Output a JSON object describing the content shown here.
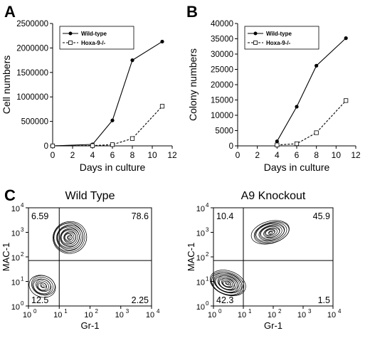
{
  "panels": [
    "A",
    "B",
    "C"
  ],
  "chart_data": [
    {
      "type": "line",
      "panel": "A",
      "ylabel": "Cell numbers",
      "xlabel": "Days in culture",
      "xlim": [
        0,
        12
      ],
      "ylim": [
        0,
        2500000
      ],
      "xticks": [
        0,
        2,
        4,
        6,
        8,
        10,
        12
      ],
      "yticks": [
        0,
        500000,
        1000000,
        1500000,
        2000000,
        2500000
      ],
      "ytick_labels": [
        "0",
        "500000",
        "1000000",
        "1500000",
        "2000000",
        "2500000"
      ],
      "legend_position": "top-right",
      "series": [
        {
          "name": "Wild-type",
          "x": [
            0,
            4,
            6,
            8,
            11
          ],
          "y": [
            0,
            30000,
            520000,
            1750000,
            2130000
          ]
        },
        {
          "name": "Hoxa-9-/-",
          "x": [
            0,
            4,
            6,
            8,
            11
          ],
          "y": [
            0,
            5000,
            25000,
            150000,
            810000
          ]
        }
      ]
    },
    {
      "type": "line",
      "panel": "B",
      "ylabel": "Colony numbers",
      "xlabel": "Days in culture",
      "xlim": [
        0,
        12
      ],
      "ylim": [
        0,
        40000
      ],
      "xticks": [
        0,
        2,
        4,
        6,
        8,
        10,
        12
      ],
      "yticks": [
        0,
        5000,
        10000,
        15000,
        20000,
        25000,
        30000,
        35000,
        40000
      ],
      "ytick_labels": [
        "0",
        "5000",
        "10000",
        "15000",
        "20000",
        "25000",
        "30000",
        "35000",
        "40000"
      ],
      "legend_position": "top-right",
      "series": [
        {
          "name": "Wild-type",
          "x": [
            4,
            6,
            8,
            11
          ],
          "y": [
            1500,
            12800,
            26200,
            35200
          ]
        },
        {
          "name": "Hoxa-9-/-",
          "x": [
            4,
            6,
            8,
            11
          ],
          "y": [
            300,
            700,
            4300,
            14800
          ]
        }
      ]
    },
    {
      "type": "contour",
      "panel": "C",
      "title": "Wild Type",
      "xlabel": "Gr-1",
      "ylabel": "MAC-1",
      "scale": "log",
      "xtick_labels": [
        "10",
        "10",
        "10",
        "10",
        "10"
      ],
      "xtick_exps": [
        "0",
        "1",
        "2",
        "3",
        "4"
      ],
      "ytick_labels": [
        "10",
        "10",
        "10",
        "10",
        "10"
      ],
      "ytick_exps": [
        "0",
        "1",
        "2",
        "3",
        "4"
      ],
      "gate_x": 1,
      "gate_y": 1.85,
      "quadrants": {
        "upper_left": "6.59",
        "upper_right": "78.6",
        "lower_left": "12.5",
        "lower_right": "2.25"
      },
      "populations": [
        {
          "cx": 1.3,
          "cy": 2.8,
          "rx": 0.55,
          "ry": 0.65,
          "weight": 1.0
        },
        {
          "cx": 0.45,
          "cy": 0.8,
          "rx": 0.35,
          "ry": 0.55,
          "weight": 0.35
        }
      ]
    },
    {
      "type": "contour",
      "panel": "C",
      "title": "A9 Knockout",
      "xlabel": "Gr-1",
      "ylabel": "MAC-1",
      "scale": "log",
      "xtick_labels": [
        "10",
        "10",
        "10",
        "10",
        "10"
      ],
      "xtick_exps": [
        "0",
        "1",
        "2",
        "3",
        "4"
      ],
      "ytick_labels": [
        "10",
        "10",
        "10",
        "10",
        "10"
      ],
      "ytick_exps": [
        "0",
        "1",
        "2",
        "3",
        "4"
      ],
      "gate_x": 1,
      "gate_y": 1.85,
      "quadrants": {
        "upper_left": "10.4",
        "upper_right": "45.9",
        "lower_left": "42.3",
        "lower_right": "1.5"
      },
      "populations": [
        {
          "cx": 1.9,
          "cy": 3.0,
          "rx": 0.65,
          "ry": 0.45,
          "weight": 0.8
        },
        {
          "cx": 0.45,
          "cy": 0.9,
          "rx": 0.4,
          "ry": 0.75,
          "weight": 1.0
        }
      ]
    }
  ]
}
